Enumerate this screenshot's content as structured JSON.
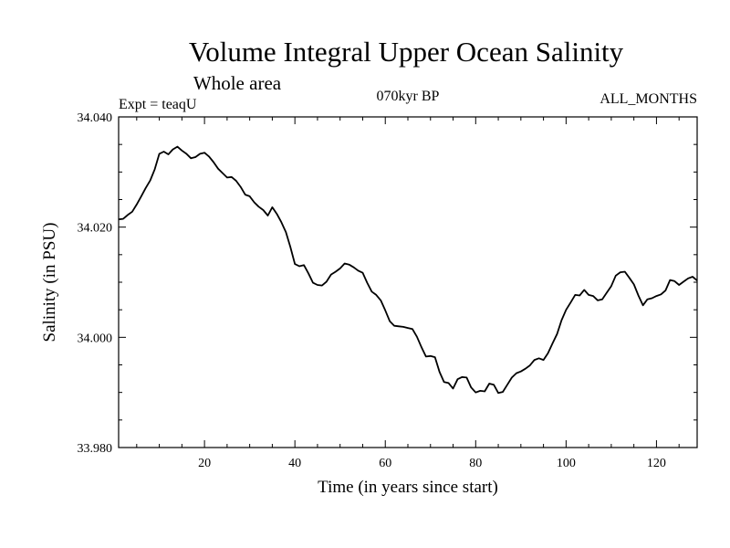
{
  "chart_data": {
    "type": "line",
    "title": "Volume Integral Upper Ocean Salinity",
    "subtitle": "Whole area",
    "expt_label": "Expt = teaqU",
    "period_label": "070kyr BP",
    "months_label": "ALL_MONTHS",
    "xlabel": "Time (in years since start)",
    "ylabel": "Salinity (in PSU)",
    "xlim": [
      1,
      129
    ],
    "ylim": [
      33.98,
      34.04
    ],
    "x_ticks": [
      20,
      40,
      60,
      80,
      100,
      120
    ],
    "x_tick_labels": [
      "20",
      "40",
      "60",
      "80",
      "100",
      "120"
    ],
    "y_ticks": [
      33.98,
      34.0,
      34.02,
      34.04
    ],
    "y_tick_labels": [
      "33.980",
      "34.000",
      "34.020",
      "34.040"
    ],
    "grid": false,
    "series": [
      {
        "name": "Salinity",
        "x": [
          1,
          2,
          3,
          4,
          5,
          6,
          7,
          8,
          9,
          10,
          11,
          12,
          13,
          14,
          15,
          16,
          17,
          18,
          19,
          20,
          21,
          22,
          23,
          24,
          25,
          26,
          27,
          28,
          29,
          30,
          31,
          32,
          33,
          34,
          35,
          36,
          37,
          38,
          39,
          40,
          41,
          42,
          43,
          44,
          45,
          46,
          47,
          48,
          49,
          50,
          51,
          52,
          53,
          54,
          55,
          56,
          57,
          58,
          59,
          60,
          61,
          62,
          63,
          64,
          65,
          66,
          67,
          68,
          69,
          70,
          71,
          72,
          73,
          74,
          75,
          76,
          77,
          78,
          79,
          80,
          81,
          82,
          83,
          84,
          85,
          86,
          87,
          88,
          89,
          90,
          91,
          92,
          93,
          94,
          95,
          96,
          97,
          98,
          99,
          100,
          101,
          102,
          103,
          104,
          105,
          106,
          107,
          108,
          109,
          110,
          111,
          112,
          113,
          114,
          115,
          116,
          117,
          118,
          119,
          120,
          121,
          122,
          123,
          124,
          125,
          126,
          127,
          128,
          129
        ],
        "values": [
          34.0214,
          34.0215,
          34.0222,
          34.0228,
          34.0241,
          34.0256,
          34.0271,
          34.0285,
          34.0305,
          34.0333,
          34.0337,
          34.0332,
          34.0341,
          34.0346,
          34.0339,
          34.0333,
          34.0325,
          34.0327,
          34.0333,
          34.0335,
          34.0328,
          34.0318,
          34.0306,
          34.0298,
          34.029,
          34.0291,
          34.0284,
          34.0273,
          34.0259,
          34.0256,
          34.0245,
          34.0237,
          34.0231,
          34.0221,
          34.0236,
          34.0224,
          34.0209,
          34.0191,
          34.0164,
          34.0133,
          34.0129,
          34.0131,
          34.0116,
          34.0099,
          34.0095,
          34.0094,
          34.0101,
          34.0114,
          34.0119,
          34.0125,
          34.0134,
          34.0132,
          34.0127,
          34.0121,
          34.0117,
          34.0099,
          34.0083,
          34.0077,
          34.0067,
          34.0049,
          34.0029,
          34.0021,
          34.002,
          34.0019,
          34.0017,
          34.0015,
          34.0001,
          33.9982,
          33.9965,
          33.9966,
          33.9964,
          33.9937,
          33.9919,
          33.9917,
          33.9907,
          33.9924,
          33.9928,
          33.9927,
          33.9909,
          33.99,
          33.9903,
          33.9902,
          33.9916,
          33.9914,
          33.9899,
          33.9901,
          33.9914,
          33.9927,
          33.9935,
          33.9938,
          33.9943,
          33.9949,
          33.9959,
          33.9962,
          33.9959,
          33.9971,
          33.9989,
          34.0006,
          34.0031,
          34.005,
          34.0063,
          34.0077,
          34.0076,
          34.0086,
          34.0077,
          34.0075,
          34.0067,
          34.0069,
          34.0081,
          34.0093,
          34.0112,
          34.0118,
          34.0119,
          34.0108,
          34.0096,
          34.0076,
          34.0058,
          34.0069,
          34.0071,
          34.0075,
          34.0078,
          34.0085,
          34.0104,
          34.0102,
          34.0095,
          34.0101,
          34.0107,
          34.011,
          34.0103
        ]
      }
    ]
  }
}
